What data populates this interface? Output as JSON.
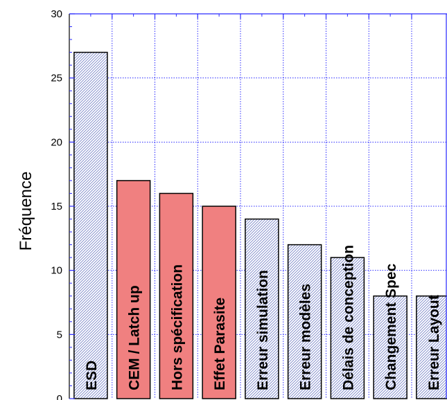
{
  "chart_data": {
    "type": "bar",
    "ylabel": "Fréquence",
    "xlabel": "",
    "ylim": [
      0,
      30
    ],
    "yticks": [
      0,
      5,
      10,
      15,
      20,
      25,
      30
    ],
    "grid": true,
    "categories": [
      "ESD",
      "CEM / Latch up",
      "Hors spécification",
      "Effet Parasite",
      "Erreur simulation",
      "Erreur modèles",
      "Délais de conception",
      "Changement Spec",
      "Erreur Layout"
    ],
    "values": [
      27,
      17,
      16,
      15,
      14,
      12,
      11,
      8,
      8
    ],
    "highlighted": [
      false,
      true,
      true,
      true,
      false,
      false,
      false,
      false,
      false
    ],
    "colors": {
      "highlight": "#f08080",
      "hatch": "#7a86c8",
      "grid": "#2a2aff",
      "axis": "#000000"
    }
  }
}
